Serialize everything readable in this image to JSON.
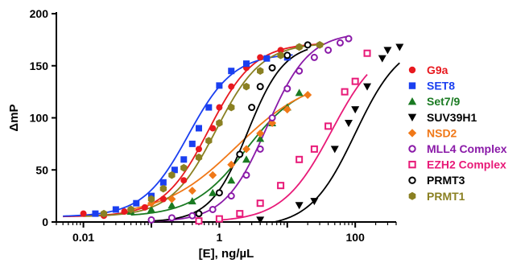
{
  "chart_data": {
    "type": "scatter",
    "title": "",
    "xlabel": "[E], ng/µL",
    "ylabel": "ΔmP",
    "x_scale": "log",
    "xlim": [
      0.004,
      400
    ],
    "ylim": [
      0,
      200
    ],
    "x_ticks": [
      0.01,
      1,
      100
    ],
    "x_tick_labels": [
      "0.01",
      "1",
      "100"
    ],
    "y_ticks": [
      0,
      50,
      100,
      150,
      200
    ],
    "y_tick_labels": [
      "0",
      "50",
      "100",
      "150",
      "200"
    ],
    "legend_position": "right",
    "series": [
      {
        "name": "G9a",
        "color": "#e8191f",
        "text_color": "#e8191f",
        "marker": "circle",
        "x": [
          0.01,
          0.02,
          0.04,
          0.08,
          0.15,
          0.3,
          0.5,
          0.8,
          1.0,
          1.5,
          2.5,
          4,
          8,
          15,
          30
        ],
        "y": [
          8,
          6,
          10,
          14,
          22,
          40,
          70,
          90,
          110,
          130,
          148,
          158,
          165,
          168,
          170
        ],
        "fit": {
          "bottom": 5,
          "top": 172,
          "ec50": 0.7,
          "hill": 1.3,
          "xmin": 0.005,
          "xmax": 35
        }
      },
      {
        "name": "SET8",
        "color": "#1a3ff0",
        "text_color": "#1a3ff0",
        "marker": "square",
        "x": [
          0.015,
          0.03,
          0.06,
          0.1,
          0.15,
          0.22,
          0.3,
          0.4,
          0.5,
          0.7,
          1.0,
          1.5,
          2.5,
          5,
          10
        ],
        "y": [
          8,
          12,
          18,
          25,
          38,
          50,
          60,
          75,
          90,
          110,
          131,
          145,
          152,
          157,
          158
        ],
        "fit": {
          "bottom": 5,
          "top": 162,
          "ec50": 0.35,
          "hill": 1.3,
          "xmin": 0.005,
          "xmax": 12
        }
      },
      {
        "name": "Set7/9",
        "color": "#1a7a22",
        "text_color": "#1a7a22",
        "marker": "triangle",
        "x": [
          0.05,
          0.1,
          0.2,
          0.4,
          0.8,
          1.5,
          2.5,
          4,
          6,
          10,
          15
        ],
        "y": [
          10,
          12,
          16,
          20,
          28,
          40,
          60,
          80,
          95,
          110,
          124
        ],
        "fit": {
          "bottom": 5,
          "top": 135,
          "ec50": 2.5,
          "hill": 1.1,
          "xmin": 0.05,
          "xmax": 15
        }
      },
      {
        "name": "SUV39H1",
        "color": "#000000",
        "text_color": "#000000",
        "marker": "triangle-down",
        "x": [
          4,
          15,
          25,
          50,
          80,
          100,
          150,
          250,
          300,
          450
        ],
        "y": [
          2,
          16,
          20,
          70,
          95,
          108,
          130,
          157,
          165,
          168
        ],
        "fit": {
          "bottom": -5,
          "top": 175,
          "ec50": 100,
          "hill": 1.3,
          "xmin": 4,
          "xmax": 450
        }
      },
      {
        "name": "NSD2",
        "color": "#f07818",
        "text_color": "#f07818",
        "marker": "diamond",
        "x": [
          0.05,
          0.1,
          0.2,
          0.4,
          0.8,
          1.5,
          2.5,
          4,
          6,
          10,
          20
        ],
        "y": [
          12,
          18,
          22,
          30,
          45,
          55,
          70,
          85,
          95,
          108,
          122
        ],
        "fit": {
          "bottom": 5,
          "top": 140,
          "ec50": 1.8,
          "hill": 0.8,
          "xmin": 0.05,
          "xmax": 20
        }
      },
      {
        "name": "MLL4 Complex",
        "color": "#8a1aa8",
        "text_color": "#8a1aa8",
        "marker": "circle-open",
        "x": [
          0.1,
          0.2,
          0.4,
          0.8,
          1.5,
          2.5,
          4,
          6,
          10,
          15,
          25,
          40,
          60,
          80
        ],
        "y": [
          2,
          4,
          6,
          12,
          25,
          45,
          70,
          100,
          128,
          145,
          158,
          165,
          172,
          176
        ],
        "fit": {
          "bottom": 0,
          "top": 182,
          "ec50": 5,
          "hill": 1.4,
          "xmin": 0.1,
          "xmax": 85
        }
      },
      {
        "name": "EZH2 Complex",
        "color": "#e81a78",
        "text_color": "#e81a78",
        "marker": "square-open",
        "x": [
          0.5,
          1,
          2,
          4,
          8,
          15,
          25,
          40,
          70,
          100,
          150
        ],
        "y": [
          1,
          3,
          8,
          18,
          35,
          60,
          70,
          92,
          125,
          135,
          162
        ],
        "fit": {
          "bottom": 0,
          "top": 175,
          "ec50": 45,
          "hill": 1.2,
          "xmin": 1,
          "xmax": 150
        }
      },
      {
        "name": "PRMT3",
        "color": "#000000",
        "text_color": "#000000",
        "marker": "circle-open",
        "x": [
          0.5,
          1,
          2,
          3,
          4,
          6,
          10,
          20
        ],
        "y": [
          8,
          28,
          65,
          110,
          130,
          148,
          160,
          170
        ],
        "fit": {
          "bottom": 0,
          "top": 172,
          "ec50": 2.6,
          "hill": 1.6,
          "xmin": 0.1,
          "xmax": 20
        }
      },
      {
        "name": "PRMT1",
        "color": "#8a8022",
        "text_color": "#8a8022",
        "marker": "hexagon",
        "x": [
          0.02,
          0.05,
          0.1,
          0.15,
          0.2,
          0.3,
          0.5,
          0.7,
          1.0,
          1.5,
          2.5,
          4,
          8,
          15,
          30
        ],
        "y": [
          8,
          12,
          22,
          32,
          45,
          52,
          62,
          78,
          95,
          110,
          130,
          145,
          160,
          168,
          170
        ],
        "fit": {
          "bottom": 5,
          "top": 172,
          "ec50": 0.9,
          "hill": 1.3,
          "xmin": 0.01,
          "xmax": 35
        }
      }
    ]
  }
}
